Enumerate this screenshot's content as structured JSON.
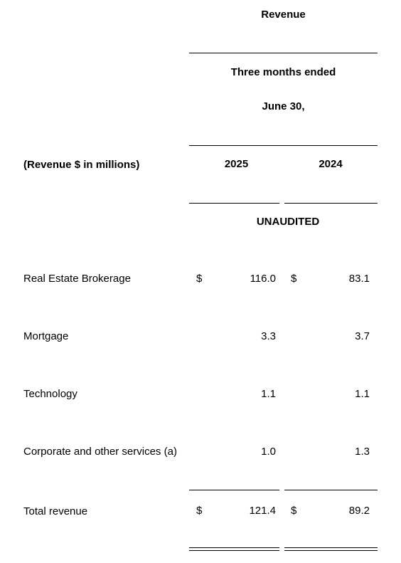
{
  "header": {
    "title": "Revenue",
    "period_line1": "Three months ended",
    "period_line2": "June 30,",
    "row_label": "(Revenue $ in millions)",
    "year_current": "2025",
    "year_prior": "2024",
    "audit_status": "UNAUDITED"
  },
  "currency_symbol": "$",
  "rows": [
    {
      "label": "Real Estate Brokerage",
      "current": "116.0",
      "prior": "83.1"
    },
    {
      "label": "Mortgage",
      "current": "3.3",
      "prior": "3.7"
    },
    {
      "label": "Technology",
      "current": "1.1",
      "prior": "1.1"
    },
    {
      "label": "Corporate and other services (a)",
      "current": "1.0",
      "prior": "1.3"
    }
  ],
  "total": {
    "label": "Total revenue",
    "current": "121.4",
    "prior": "89.2"
  }
}
